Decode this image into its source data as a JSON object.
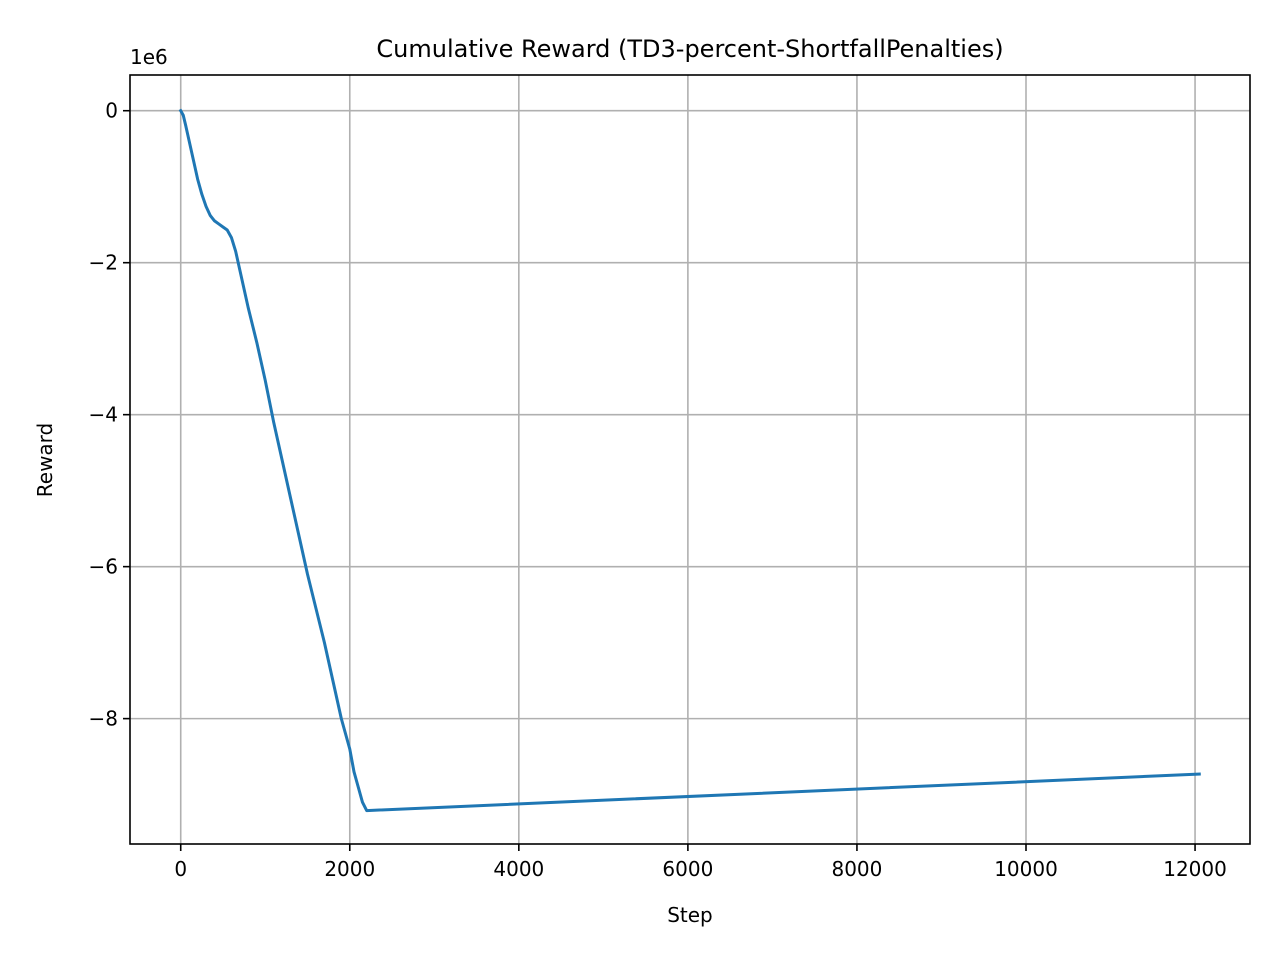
{
  "chart_data": {
    "type": "line",
    "title": "Cumulative Reward (TD3-percent-ShortfallPenalties)",
    "xlabel": "Step",
    "ylabel": "Reward",
    "y_offset_label": "1e6",
    "y_scale_factor": 1000000,
    "xlim": [
      -600,
      12650
    ],
    "ylim": [
      -9650000,
      470000
    ],
    "x_ticks": [
      0,
      2000,
      4000,
      6000,
      8000,
      10000,
      12000
    ],
    "x_tick_labels": [
      "0",
      "2000",
      "4000",
      "6000",
      "8000",
      "10000",
      "12000"
    ],
    "y_ticks": [
      0,
      -2000000,
      -4000000,
      -6000000,
      -8000000
    ],
    "y_tick_labels": [
      "0",
      "−2",
      "−4",
      "−6",
      "−8"
    ],
    "grid": true,
    "series": [
      {
        "color": "#1f77b4",
        "points": [
          [
            0,
            0
          ],
          [
            30,
            -60000
          ],
          [
            60,
            -200000
          ],
          [
            100,
            -400000
          ],
          [
            150,
            -650000
          ],
          [
            200,
            -900000
          ],
          [
            250,
            -1100000
          ],
          [
            300,
            -1260000
          ],
          [
            350,
            -1380000
          ],
          [
            400,
            -1450000
          ],
          [
            450,
            -1490000
          ],
          [
            500,
            -1530000
          ],
          [
            550,
            -1570000
          ],
          [
            600,
            -1670000
          ],
          [
            650,
            -1850000
          ],
          [
            700,
            -2100000
          ],
          [
            800,
            -2600000
          ],
          [
            900,
            -3050000
          ],
          [
            1000,
            -3550000
          ],
          [
            1100,
            -4100000
          ],
          [
            1200,
            -4600000
          ],
          [
            1300,
            -5100000
          ],
          [
            1400,
            -5600000
          ],
          [
            1500,
            -6100000
          ],
          [
            1600,
            -6550000
          ],
          [
            1700,
            -7000000
          ],
          [
            1800,
            -7500000
          ],
          [
            1900,
            -8000000
          ],
          [
            2000,
            -8400000
          ],
          [
            2050,
            -8700000
          ],
          [
            2100,
            -8900000
          ],
          [
            2150,
            -9100000
          ],
          [
            2200,
            -9210000
          ],
          [
            12050,
            -8730000
          ]
        ]
      }
    ]
  }
}
